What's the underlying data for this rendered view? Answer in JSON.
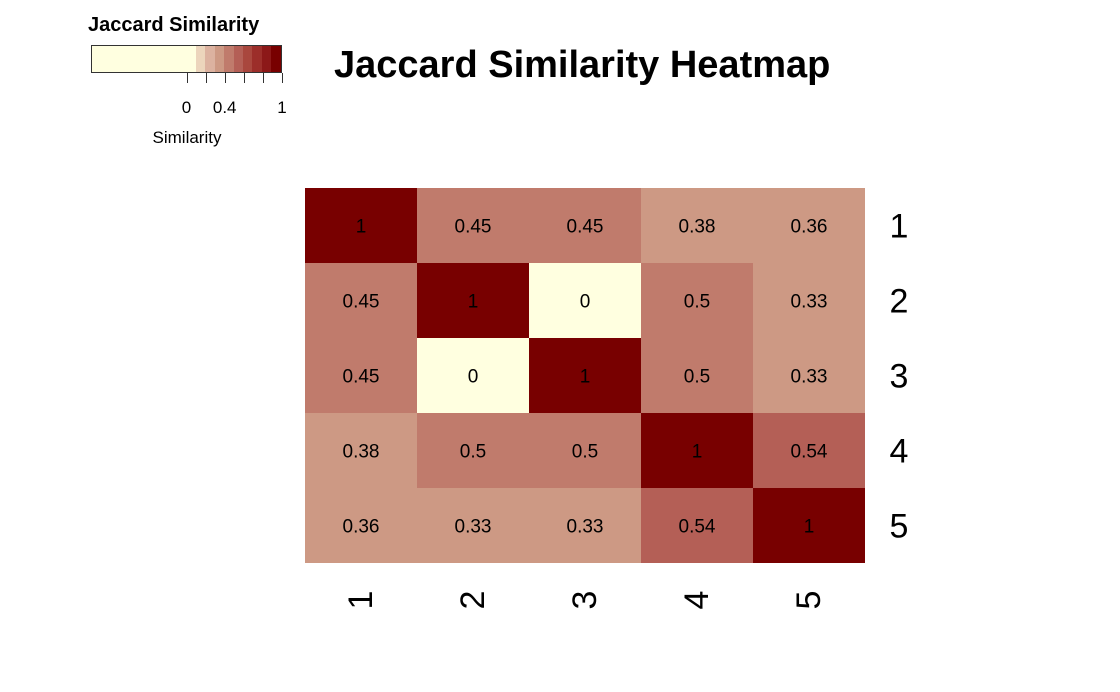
{
  "chart_data": {
    "type": "heatmap",
    "title": "Jaccard Similarity Heatmap",
    "row_labels": [
      "1",
      "2",
      "3",
      "4",
      "5"
    ],
    "col_labels": [
      "1",
      "2",
      "3",
      "4",
      "5"
    ],
    "values": [
      [
        1,
        0.45,
        0.45,
        0.38,
        0.36
      ],
      [
        0.45,
        1,
        0,
        0.5,
        0.33
      ],
      [
        0.45,
        0,
        1,
        0.5,
        0.33
      ],
      [
        0.38,
        0.5,
        0.5,
        1,
        0.54
      ],
      [
        0.36,
        0.33,
        0.33,
        0.54,
        1
      ]
    ],
    "cell_labels": [
      [
        "1",
        "0.45",
        "0.45",
        "0.38",
        "0.36"
      ],
      [
        "0.45",
        "1",
        "0",
        "0.5",
        "0.33"
      ],
      [
        "0.45",
        "0",
        "1",
        "0.5",
        "0.33"
      ],
      [
        "0.38",
        "0.5",
        "0.5",
        "1",
        "0.54"
      ],
      [
        "0.36",
        "0.33",
        "0.33",
        "0.54",
        "1"
      ]
    ],
    "legend": {
      "title": "Jaccard Similarity",
      "axis_title": "Similarity",
      "tick_labels": [
        "0",
        "0.4",
        "1"
      ],
      "tick_values": [
        0,
        0.4,
        1
      ],
      "range": [
        -1,
        1
      ],
      "palette": [
        "#ffffe0",
        "#ffffe0",
        "#ffffe0",
        "#ffffe0",
        "#ffffe0",
        "#ffffe0",
        "#ffffe0",
        "#ffffe0",
        "#ffffe0",
        "#ffffe0",
        "#ffffe0",
        "#ecd5bc",
        "#dcb2a0",
        "#cd9984",
        "#c07b6c",
        "#b45f56",
        "#a9473e",
        "#9c2e2a",
        "#8c1818",
        "#780000"
      ]
    },
    "cell_colors": [
      [
        "#780000",
        "#c07b6c",
        "#c07b6c",
        "#cd9984",
        "#cd9984"
      ],
      [
        "#c07b6c",
        "#780000",
        "#ffffe0",
        "#c07b6c",
        "#cd9984"
      ],
      [
        "#c07b6c",
        "#ffffe0",
        "#780000",
        "#c07b6c",
        "#cd9984"
      ],
      [
        "#cd9984",
        "#c07b6c",
        "#c07b6c",
        "#780000",
        "#b45f56"
      ],
      [
        "#cd9984",
        "#cd9984",
        "#cd9984",
        "#b45f56",
        "#780000"
      ]
    ]
  }
}
